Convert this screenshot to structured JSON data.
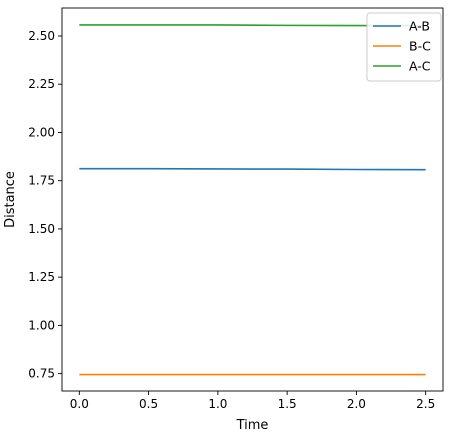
{
  "chart_data": {
    "type": "line",
    "title": "",
    "xlabel": "Time",
    "ylabel": "Distance",
    "xlim": [
      -0.125,
      2.625
    ],
    "ylim": [
      0.66,
      2.645
    ],
    "xticks": [
      0.0,
      0.5,
      1.0,
      1.5,
      2.0,
      2.5
    ],
    "xtick_labels": [
      "0.0",
      "0.5",
      "1.0",
      "1.5",
      "2.0",
      "2.5"
    ],
    "yticks": [
      0.75,
      1.0,
      1.25,
      1.5,
      1.75,
      2.0,
      2.25,
      2.5
    ],
    "ytick_labels": [
      "0.75",
      "1.00",
      "1.25",
      "1.50",
      "1.75",
      "2.00",
      "2.25",
      "2.50"
    ],
    "grid": false,
    "legend_position": "upper right",
    "x": [
      0.0,
      0.5,
      1.0,
      1.5,
      2.0,
      2.5
    ],
    "series": [
      {
        "name": "A-B",
        "color": "#1f77b4",
        "values": [
          1.812,
          1.812,
          1.811,
          1.81,
          1.808,
          1.807
        ]
      },
      {
        "name": "B-C",
        "color": "#ff7f0e",
        "values": [
          0.745,
          0.745,
          0.745,
          0.745,
          0.745,
          0.745
        ]
      },
      {
        "name": "A-C",
        "color": "#2ca02c",
        "values": [
          2.557,
          2.557,
          2.557,
          2.555,
          2.554,
          2.553
        ]
      }
    ]
  }
}
